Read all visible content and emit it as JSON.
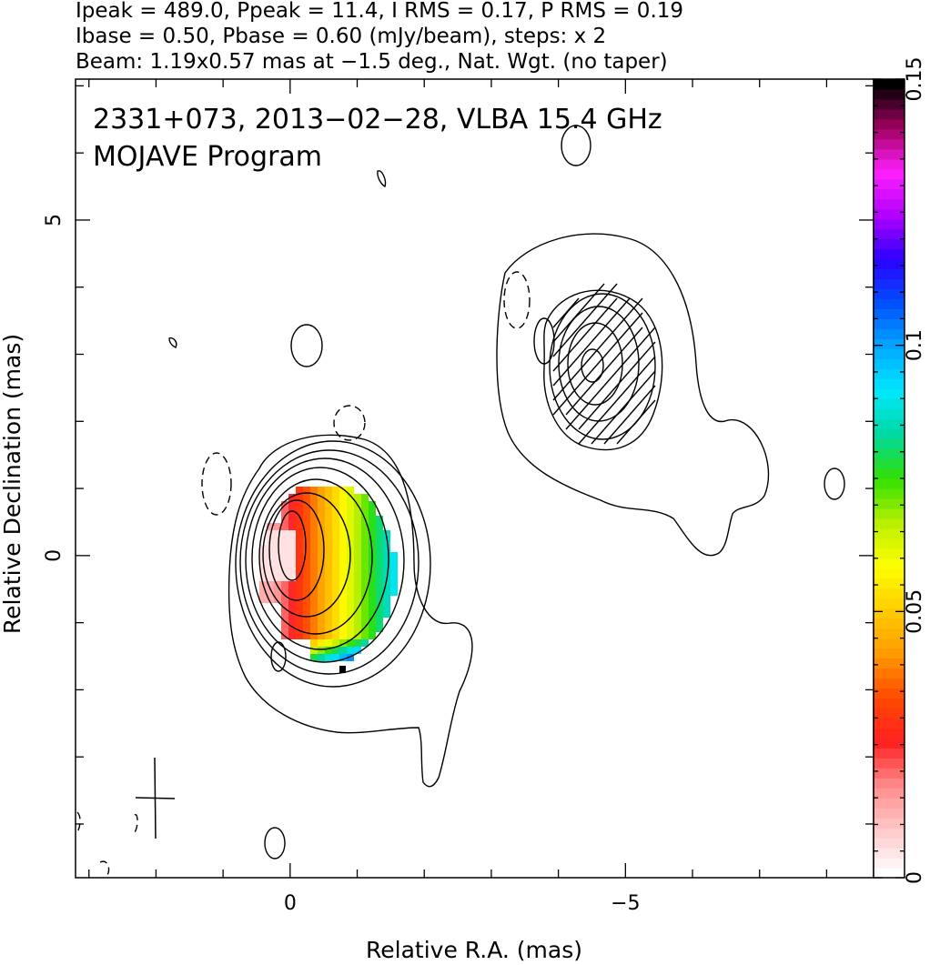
{
  "header": {
    "line1": "Ipeak = 489.0, Ppeak = 11.4, I RMS = 0.17, P RMS = 0.19",
    "line2": "Ibase = 0.50, Pbase = 0.60 (mJy/beam), steps: x 2",
    "line3": "Beam: 1.19x0.57 mas at −1.5 deg., Nat. Wgt. (no taper)"
  },
  "plot": {
    "title_line1": "2331+073, 2013−02−28, VLBA 15.4 GHz",
    "title_line2": "MOJAVE Program"
  },
  "chart_data": {
    "type": "heatmap",
    "xlabel": "Relative R.A. (mas)",
    "ylabel": "Relative Declination (mas)",
    "xlim": [
      3.2,
      -8.7
    ],
    "ylim": [
      -4.8,
      7.1
    ],
    "xticks": [
      {
        "value": 0,
        "label": "0"
      },
      {
        "value": -5,
        "label": "−5"
      }
    ],
    "yticks": [
      {
        "value": 0,
        "label": "0"
      },
      {
        "value": 5,
        "label": "5"
      }
    ],
    "colorbar": {
      "range": [
        0,
        0.15
      ],
      "ticks": [
        {
          "value": 0,
          "label": "0"
        },
        {
          "value": 0.05,
          "label": "0.05"
        },
        {
          "value": 0.1,
          "label": "0.1"
        },
        {
          "value": 0.15,
          "label": "0.15"
        }
      ],
      "palette": [
        "#ffffff",
        "#ffc8c8",
        "#ff8a8a",
        "#ff2020",
        "#ff4a00",
        "#ff9a00",
        "#ffcc00",
        "#ffff00",
        "#b8f000",
        "#30e000",
        "#00d8a0",
        "#00e8ff",
        "#00a8ff",
        "#0050ff",
        "#2a00ff",
        "#b000ff",
        "#ff20ff",
        "#a00060",
        "#000000"
      ]
    },
    "components": [
      {
        "ra": 0.0,
        "dec": 0.0,
        "peak_mjy": 489.0
      },
      {
        "ra": -4.5,
        "dec": 2.9
      }
    ],
    "beam_mas": {
      "major": 1.19,
      "minor": 0.57,
      "pa_deg": -1.5
    },
    "contours_mjy": {
      "base": 0.5,
      "step_factor": 2
    }
  }
}
